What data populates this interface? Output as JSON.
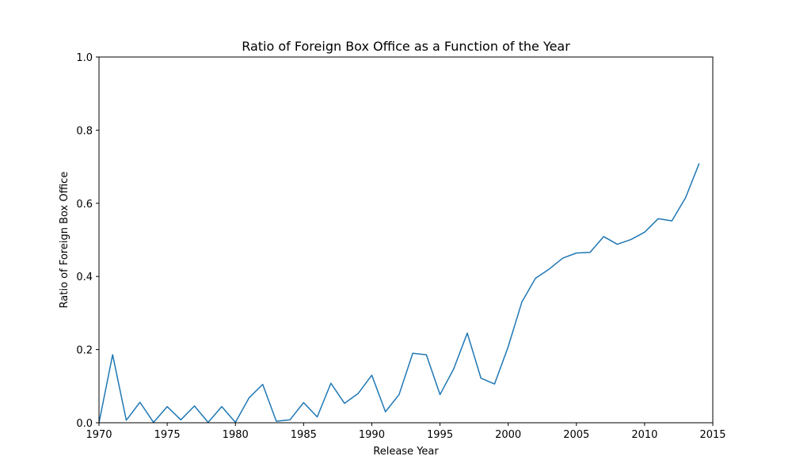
{
  "chart_data": {
    "type": "line",
    "title": "Ratio of Foreign Box Office as a Function of the Year",
    "xlabel": "Release Year",
    "ylabel": "Ratio of Foreign Box Office",
    "xlim": [
      1970,
      2015
    ],
    "ylim": [
      0,
      1.0
    ],
    "xticks": [
      1970,
      1975,
      1980,
      1985,
      1990,
      1995,
      2000,
      2005,
      2010,
      2015
    ],
    "xtick_labels": [
      "1970",
      "1975",
      "1980",
      "1985",
      "1990",
      "1995",
      "2000",
      "2005",
      "2010",
      "2015"
    ],
    "yticks": [
      0,
      0.2,
      0.4,
      0.6,
      0.8,
      1.0
    ],
    "ytick_labels": [
      "0.0",
      "0.2",
      "0.4",
      "0.6",
      "0.8",
      "1.0"
    ],
    "grid": false,
    "line_color": "#1f77b4",
    "series": [
      {
        "x": [
          1970,
          1971,
          1972,
          1973,
          1974,
          1975,
          1976,
          1977,
          1978,
          1979,
          1980,
          1981,
          1982,
          1983,
          1984,
          1985,
          1986,
          1987,
          1988,
          1989,
          1990,
          1991,
          1992,
          1993,
          1994,
          1995,
          1996,
          1997,
          1998,
          1999,
          2000,
          2001,
          2002,
          2003,
          2004,
          2005,
          2006,
          2007,
          2008,
          2009,
          2010,
          2011,
          2012,
          2013,
          2014
        ],
        "values": [
          0.0,
          0.186,
          0.007,
          0.056,
          0.001,
          0.044,
          0.008,
          0.046,
          0.001,
          0.044,
          0.001,
          0.068,
          0.105,
          0.004,
          0.008,
          0.055,
          0.016,
          0.108,
          0.053,
          0.08,
          0.13,
          0.03,
          0.077,
          0.19,
          0.186,
          0.077,
          0.147,
          0.245,
          0.122,
          0.106,
          0.208,
          0.33,
          0.395,
          0.42,
          0.45,
          0.464,
          0.466,
          0.509,
          0.488,
          0.501,
          0.521,
          0.558,
          0.552,
          0.615,
          0.709
        ]
      }
    ]
  }
}
